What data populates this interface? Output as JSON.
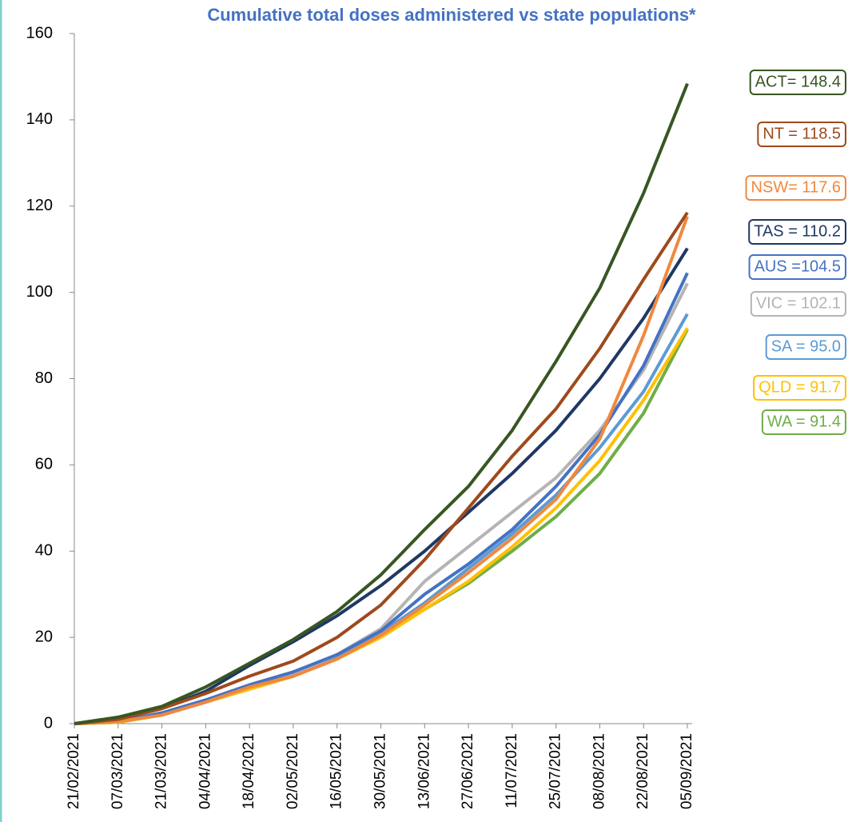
{
  "chart_data": {
    "type": "line",
    "title": "Cumulative total doses administered vs state populations*",
    "categories": [
      "21/02/2021",
      "07/03/2021",
      "21/03/2021",
      "04/04/2021",
      "18/04/2021",
      "02/05/2021",
      "16/05/2021",
      "30/05/2021",
      "13/06/2021",
      "27/06/2021",
      "11/07/2021",
      "25/07/2021",
      "08/08/2021",
      "22/08/2021",
      "05/09/2021"
    ],
    "ylim": [
      0,
      160
    ],
    "yticks": [
      0,
      20,
      40,
      60,
      80,
      100,
      120,
      140,
      160
    ],
    "grid": false,
    "series": [
      {
        "name": "ACT",
        "color": "#375623",
        "values": [
          0,
          1.5,
          4,
          8.5,
          14,
          19.5,
          26,
          34.5,
          45,
          55,
          68,
          84,
          101,
          123,
          148.4
        ]
      },
      {
        "name": "NT",
        "color": "#9e4a1c",
        "values": [
          0,
          1,
          3.5,
          7,
          11,
          14.5,
          20,
          27.5,
          38,
          50,
          62,
          73,
          87,
          103,
          118.5
        ]
      },
      {
        "name": "NSW",
        "color": "#f0883e",
        "values": [
          0,
          0.5,
          2,
          5,
          8.5,
          11,
          15,
          20.5,
          27.5,
          35,
          43,
          52,
          66,
          90,
          117.6
        ]
      },
      {
        "name": "TAS",
        "color": "#1f3864",
        "values": [
          0,
          1,
          3.5,
          7.5,
          13.5,
          19,
          25,
          32,
          40,
          49,
          58,
          68,
          80,
          94,
          110.2
        ]
      },
      {
        "name": "AUS",
        "color": "#4472c4",
        "values": [
          0,
          0.5,
          2.5,
          5.5,
          9,
          12,
          16,
          21.5,
          30,
          37,
          45,
          55,
          67,
          83,
          104.5
        ]
      },
      {
        "name": "VIC",
        "color": "#b4b4b4",
        "values": [
          0,
          0.5,
          2,
          5,
          8.5,
          11.5,
          16,
          22,
          33,
          41,
          49,
          57,
          68,
          82,
          102.1
        ]
      },
      {
        "name": "SA",
        "color": "#5b9bd5",
        "values": [
          0,
          0.5,
          2,
          5,
          8.5,
          11.5,
          15.5,
          21,
          28,
          36,
          44,
          53,
          64,
          77,
          95.0
        ]
      },
      {
        "name": "QLD",
        "color": "#ffc000",
        "values": [
          0,
          0.3,
          2,
          5,
          8,
          11,
          15,
          20,
          26.5,
          33,
          41,
          50,
          61,
          75,
          91.7
        ]
      },
      {
        "name": "WA",
        "color": "#70ad47",
        "values": [
          0,
          0.3,
          2,
          5,
          8,
          11,
          15,
          20.5,
          26.5,
          32.5,
          40,
          48,
          58,
          72,
          91.4
        ]
      }
    ],
    "annotations": [
      "ACT= 148.4",
      "NT = 118.5",
      "NSW= 117.6",
      "TAS = 110.2",
      "AUS =104.5",
      "VIC = 102.1",
      "SA = 95.0",
      "QLD = 91.7",
      "WA = 91.4"
    ]
  }
}
